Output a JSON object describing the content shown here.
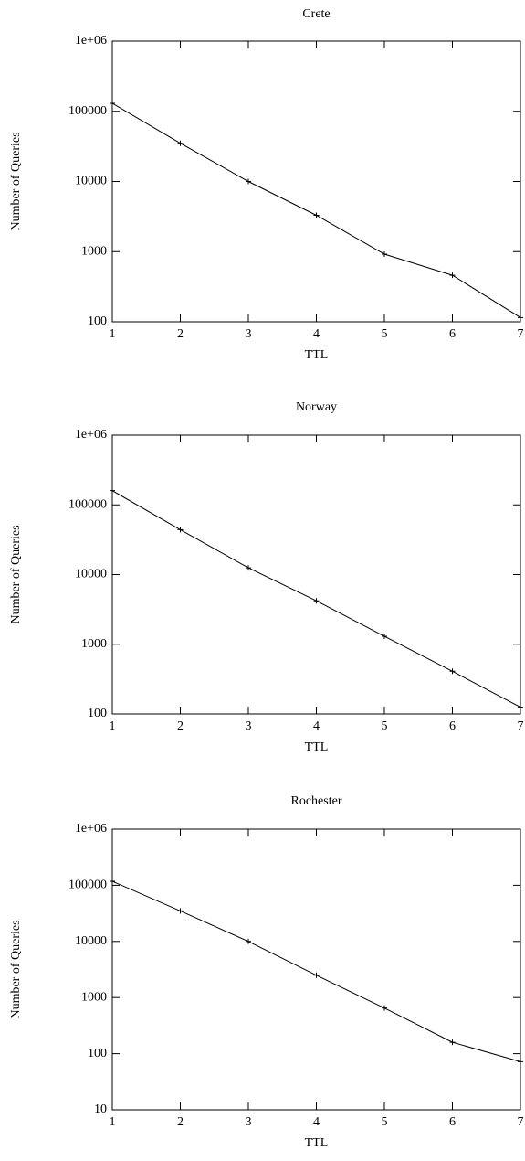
{
  "chart_data": [
    {
      "type": "line",
      "title": "Crete",
      "xlabel": "TTL",
      "ylabel": "Number of Queries",
      "x": [
        1,
        2,
        3,
        4,
        5,
        6,
        7
      ],
      "values": [
        130000,
        35000,
        10000,
        3300,
        920,
        460,
        115
      ],
      "color": "#000000",
      "xlim": [
        1,
        7
      ],
      "xticks": [
        1,
        2,
        3,
        4,
        5,
        6,
        7
      ],
      "ylim": [
        100,
        1000000
      ],
      "log_y": true,
      "yticks": [
        100,
        1000,
        10000,
        100000,
        {
          "value": 1000000,
          "label": "1e+06"
        }
      ]
    },
    {
      "type": "line",
      "title": "Norway",
      "xlabel": "TTL",
      "ylabel": "Number of Queries",
      "x": [
        1,
        2,
        3,
        4,
        5,
        6,
        7
      ],
      "values": [
        160000,
        44000,
        12500,
        4200,
        1300,
        410,
        125
      ],
      "color": "#000000",
      "xlim": [
        1,
        7
      ],
      "xticks": [
        1,
        2,
        3,
        4,
        5,
        6,
        7
      ],
      "ylim": [
        100,
        1000000
      ],
      "log_y": true,
      "yticks": [
        100,
        1000,
        10000,
        100000,
        {
          "value": 1000000,
          "label": "1e+06"
        }
      ]
    },
    {
      "type": "line",
      "title": "Rochester",
      "xlabel": "TTL",
      "ylabel": "Number of Queries",
      "x": [
        1,
        2,
        3,
        4,
        5,
        6,
        7
      ],
      "values": [
        118000,
        35000,
        10000,
        2500,
        650,
        160,
        72
      ],
      "color": "#000000",
      "xlim": [
        1,
        7
      ],
      "xticks": [
        1,
        2,
        3,
        4,
        5,
        6,
        7
      ],
      "ylim": [
        10,
        1000000
      ],
      "log_y": true,
      "yticks": [
        10,
        100,
        1000,
        10000,
        100000,
        {
          "value": 1000000,
          "label": "1e+06"
        }
      ]
    }
  ]
}
